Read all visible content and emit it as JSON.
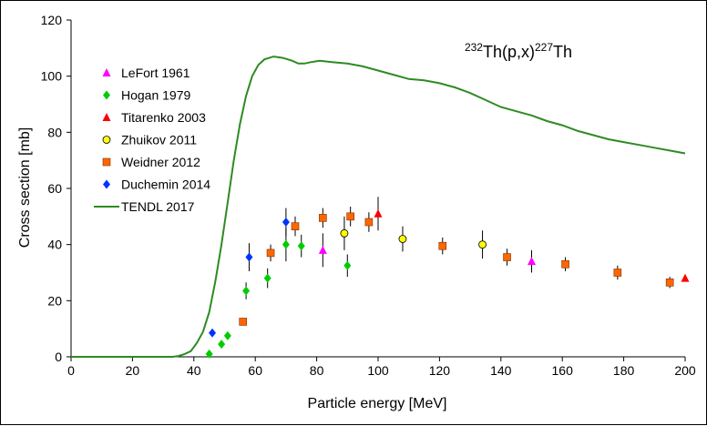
{
  "chart_data": {
    "type": "scatter",
    "title": "",
    "reaction": {
      "mass_target": "232",
      "target": "Th(p,x)",
      "mass_product": "227",
      "product": "Th"
    },
    "xlabel": "Particle energy [MeV]",
    "ylabel": "Cross section [mb]",
    "xlim": [
      0,
      200
    ],
    "ylim": [
      0,
      120
    ],
    "xticks": [
      0,
      20,
      40,
      60,
      80,
      100,
      120,
      140,
      160,
      180,
      200
    ],
    "yticks": [
      0,
      20,
      40,
      60,
      80,
      100,
      120
    ],
    "grid": false,
    "legend_position": "upper-left",
    "series": [
      {
        "name": "LeFort 1961",
        "marker": "triangle",
        "color": "#ff00ff",
        "points": [
          {
            "x": 82,
            "y": 38,
            "err": 6
          },
          {
            "x": 150,
            "y": 34,
            "err": 4
          }
        ]
      },
      {
        "name": "Hogan 1979",
        "marker": "diamond",
        "color": "#00cc00",
        "points": [
          {
            "x": 45,
            "y": 1,
            "err": 0
          },
          {
            "x": 49,
            "y": 4.5,
            "err": 0
          },
          {
            "x": 51,
            "y": 7.5,
            "err": 0
          },
          {
            "x": 57,
            "y": 23.5,
            "err": 3
          },
          {
            "x": 64,
            "y": 28,
            "err": 3.5
          },
          {
            "x": 70,
            "y": 40,
            "err": 6
          },
          {
            "x": 75,
            "y": 39.5,
            "err": 4
          },
          {
            "x": 90,
            "y": 32.5,
            "err": 4
          }
        ]
      },
      {
        "name": "Titarenko 2003",
        "marker": "triangle",
        "color": "#ff0000",
        "points": [
          {
            "x": 100,
            "y": 51,
            "err": 6
          },
          {
            "x": 200,
            "y": 28,
            "err": 0
          }
        ]
      },
      {
        "name": "Zhuikov 2011",
        "marker": "circle",
        "color": "#ffff00",
        "points": [
          {
            "x": 89,
            "y": 44,
            "err": 6
          },
          {
            "x": 108,
            "y": 42,
            "err": 4.5
          },
          {
            "x": 134,
            "y": 40,
            "err": 5
          }
        ]
      },
      {
        "name": "Weidner 2012",
        "marker": "square",
        "color": "#ff6600",
        "points": [
          {
            "x": 56,
            "y": 12.5,
            "err": 0
          },
          {
            "x": 65,
            "y": 37,
            "err": 3
          },
          {
            "x": 73,
            "y": 46.5,
            "err": 3.5
          },
          {
            "x": 82,
            "y": 49.5,
            "err": 3.5
          },
          {
            "x": 91,
            "y": 50,
            "err": 3.5
          },
          {
            "x": 97,
            "y": 48,
            "err": 3.5
          },
          {
            "x": 121,
            "y": 39.5,
            "err": 3
          },
          {
            "x": 142,
            "y": 35.5,
            "err": 3
          },
          {
            "x": 161,
            "y": 33,
            "err": 2.5
          },
          {
            "x": 178,
            "y": 30,
            "err": 2.5
          },
          {
            "x": 195,
            "y": 26.5,
            "err": 2
          }
        ]
      },
      {
        "name": "Duchemin 2014",
        "marker": "diamond",
        "color": "#0033ff",
        "points": [
          {
            "x": 46,
            "y": 8.5,
            "err": 0
          },
          {
            "x": 58,
            "y": 35.5,
            "err": 5
          },
          {
            "x": 70,
            "y": 48,
            "err": 5
          }
        ]
      },
      {
        "name": "TENDL 2017",
        "marker": "line",
        "color": "#2e8b22",
        "points": [
          {
            "x": 0,
            "y": 0
          },
          {
            "x": 33,
            "y": 0
          },
          {
            "x": 35,
            "y": 0.3
          },
          {
            "x": 37,
            "y": 1
          },
          {
            "x": 39,
            "y": 2
          },
          {
            "x": 41,
            "y": 5
          },
          {
            "x": 43,
            "y": 9
          },
          {
            "x": 45,
            "y": 16
          },
          {
            "x": 47,
            "y": 27
          },
          {
            "x": 49,
            "y": 40
          },
          {
            "x": 51,
            "y": 55
          },
          {
            "x": 53,
            "y": 70
          },
          {
            "x": 55,
            "y": 83
          },
          {
            "x": 57,
            "y": 93
          },
          {
            "x": 59,
            "y": 100
          },
          {
            "x": 61,
            "y": 104
          },
          {
            "x": 63,
            "y": 106
          },
          {
            "x": 66,
            "y": 107
          },
          {
            "x": 69,
            "y": 106.5
          },
          {
            "x": 72,
            "y": 105.5
          },
          {
            "x": 74,
            "y": 104.5
          },
          {
            "x": 76,
            "y": 104.5
          },
          {
            "x": 78,
            "y": 105
          },
          {
            "x": 81,
            "y": 105.5
          },
          {
            "x": 85,
            "y": 105
          },
          {
            "x": 90,
            "y": 104.5
          },
          {
            "x": 95,
            "y": 103.5
          },
          {
            "x": 100,
            "y": 102
          },
          {
            "x": 105,
            "y": 100.5
          },
          {
            "x": 110,
            "y": 99
          },
          {
            "x": 115,
            "y": 98.5
          },
          {
            "x": 120,
            "y": 97.5
          },
          {
            "x": 125,
            "y": 96
          },
          {
            "x": 130,
            "y": 94
          },
          {
            "x": 135,
            "y": 91.5
          },
          {
            "x": 140,
            "y": 89
          },
          {
            "x": 145,
            "y": 87.5
          },
          {
            "x": 150,
            "y": 86
          },
          {
            "x": 155,
            "y": 84
          },
          {
            "x": 160,
            "y": 82.5
          },
          {
            "x": 165,
            "y": 80.5
          },
          {
            "x": 170,
            "y": 79
          },
          {
            "x": 175,
            "y": 77.5
          },
          {
            "x": 180,
            "y": 76.5
          },
          {
            "x": 185,
            "y": 75.5
          },
          {
            "x": 190,
            "y": 74.5
          },
          {
            "x": 195,
            "y": 73.5
          },
          {
            "x": 200,
            "y": 72.5
          }
        ]
      }
    ]
  }
}
